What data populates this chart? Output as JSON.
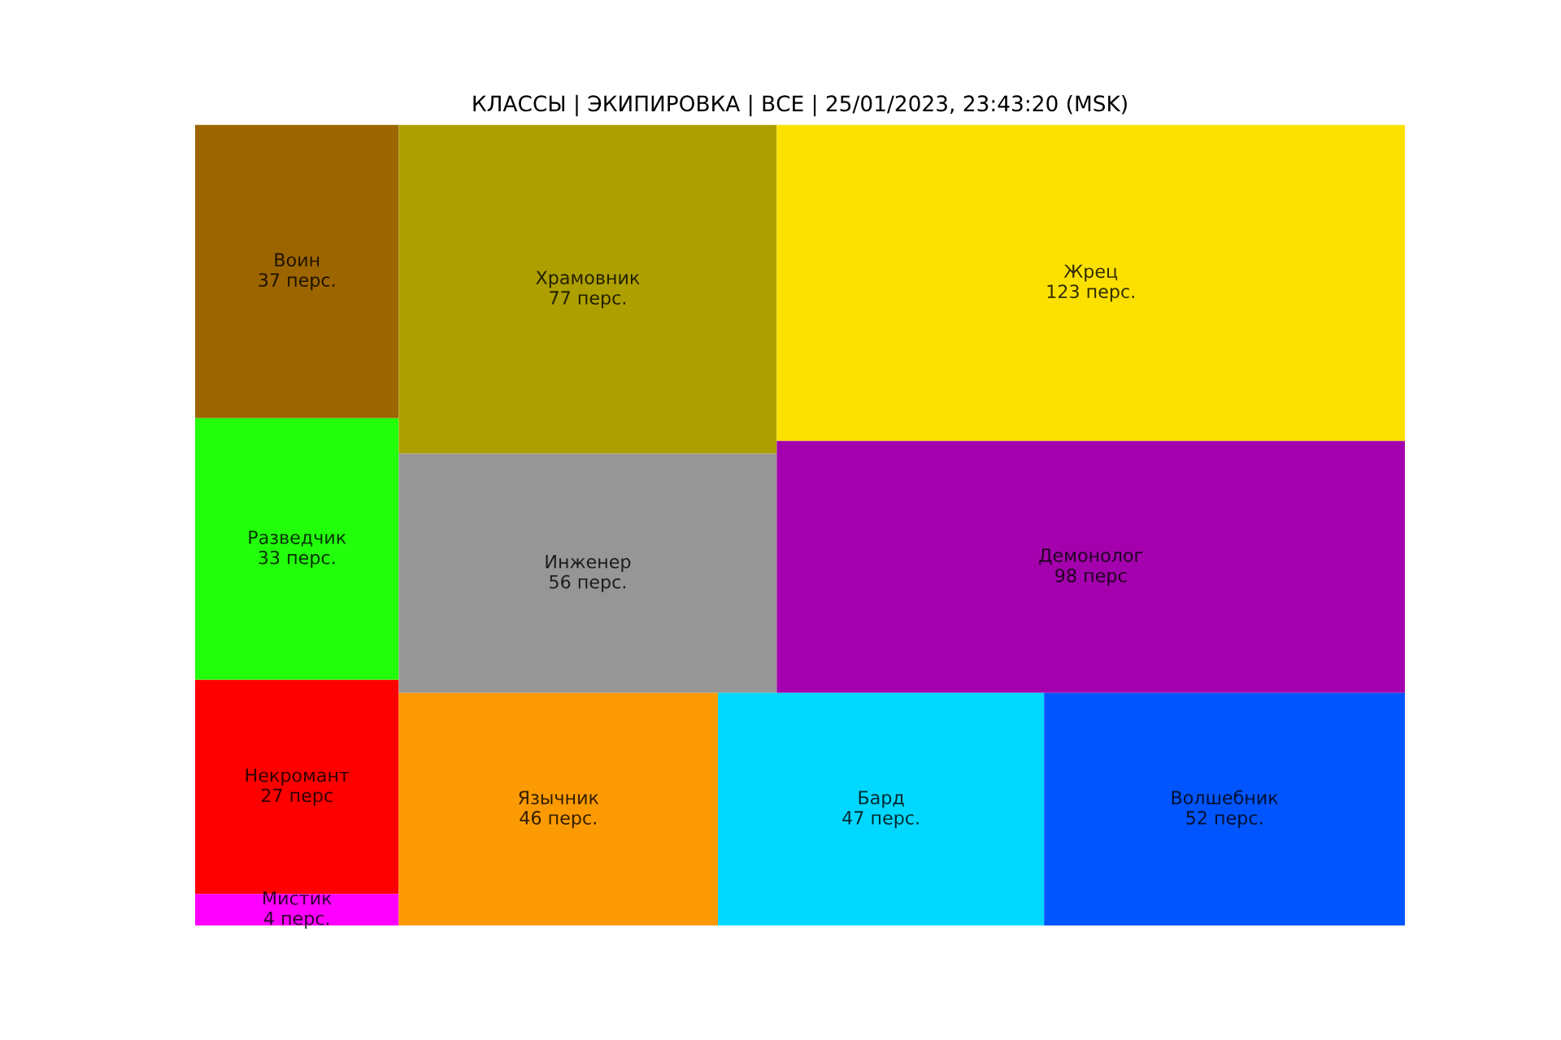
{
  "chart_data": {
    "type": "other",
    "title": "КЛАССЫ | ЭКИПИРОВКА | ВСЕ | 25/01/2023, 23:43:20 (MSK)",
    "categories": [
      "Воин",
      "Разведчик",
      "Некромант",
      "Мистик",
      "Храмовник",
      "Инженер",
      "Жрец",
      "Демонолог",
      "Язычник",
      "Бард",
      "Волшебник"
    ],
    "values": [
      37,
      33,
      27,
      4,
      77,
      56,
      123,
      98,
      46,
      47,
      52
    ],
    "value_labels": [
      "37 перс.",
      "33 перс.",
      "27 перс",
      "4 перс.",
      "77 перс.",
      "56 перс.",
      "123 перс.",
      "98 перс",
      "46 перс.",
      "47 перс.",
      "52 перс."
    ],
    "colors": [
      "#9c6500",
      "#22ff0a",
      "#ff0000",
      "#ff00ff",
      "#ad9f00",
      "#969696",
      "#fce100",
      "#a400ad",
      "#fc9a03",
      "#00d8ff",
      "#0055ff"
    ]
  }
}
